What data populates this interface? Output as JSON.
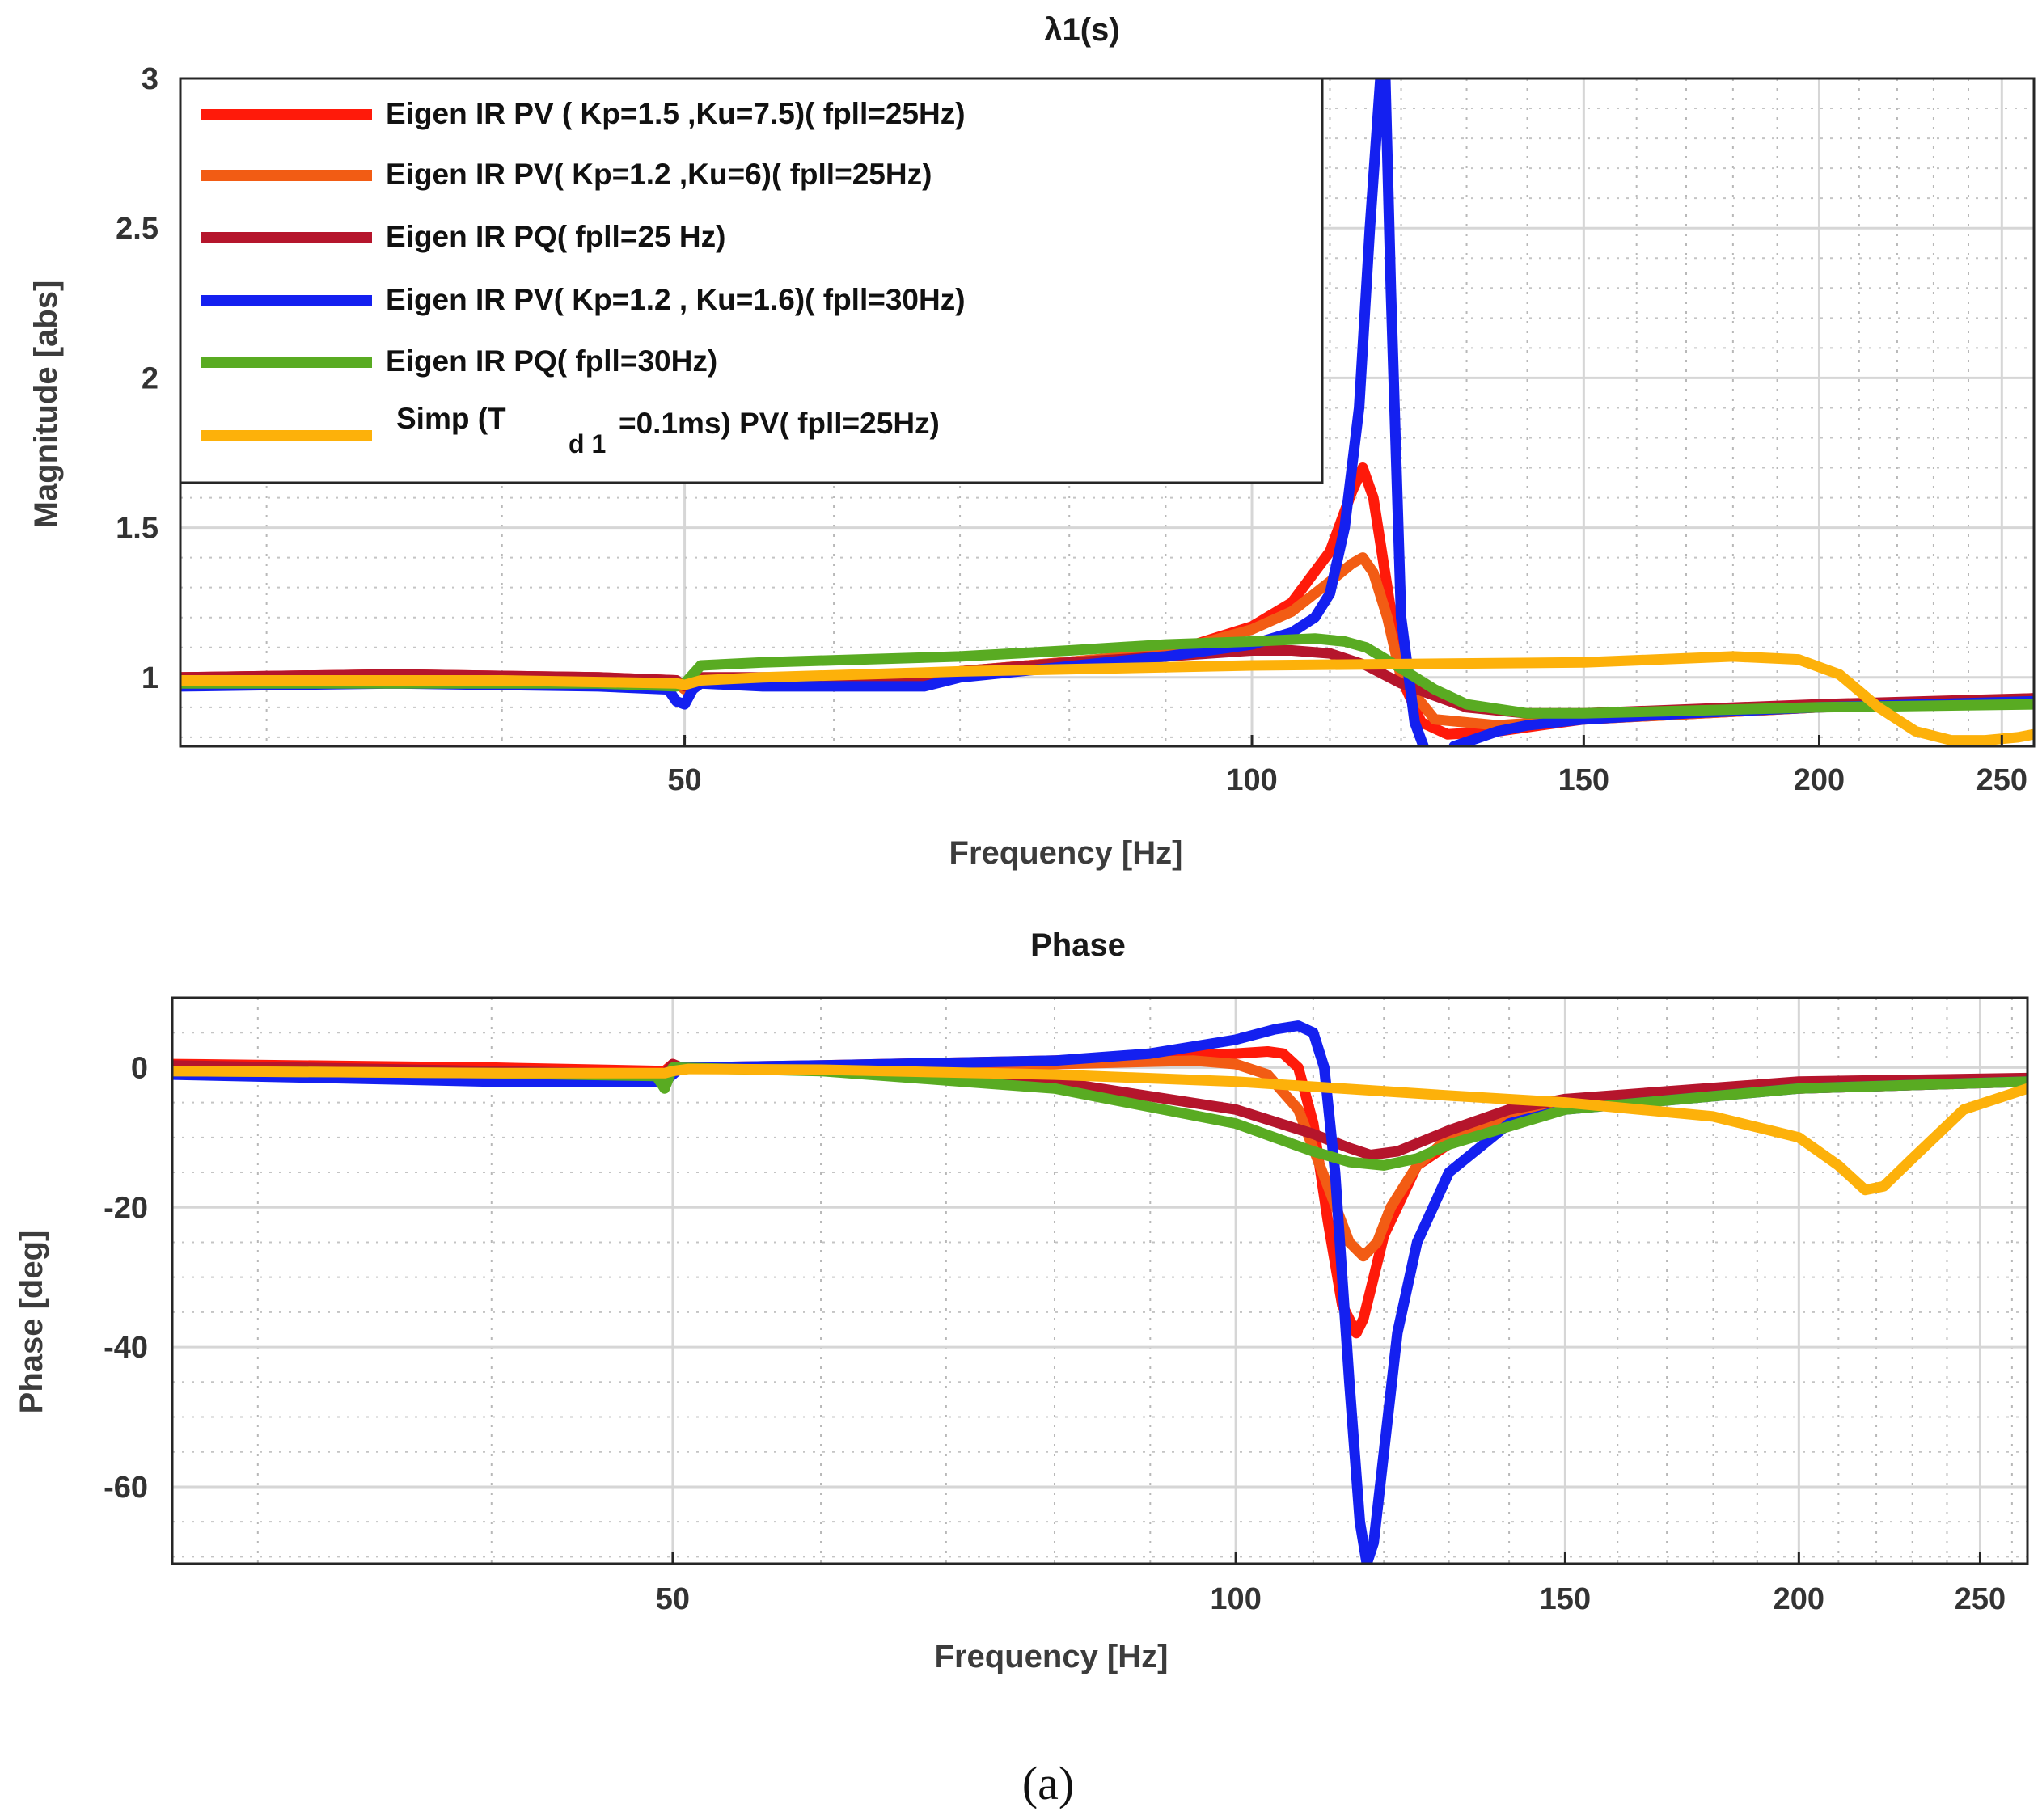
{
  "caption": "(a)",
  "colors": {
    "red": "#ff1a0a",
    "orange": "#f25c14",
    "darkred": "#b5152c",
    "blue": "#1420f0",
    "green": "#59ab22",
    "yellow": "#fdb10a",
    "grid": "#d6d6d6",
    "axis": "#262626"
  },
  "chart_data": [
    {
      "type": "line",
      "title": "λ1(s)",
      "xlabel": "Frequency [Hz]",
      "ylabel": "Magnitude [abs]",
      "xscale": "log",
      "xlim": [
        27,
        260
      ],
      "ylim": [
        0.77,
        3.0
      ],
      "xticks": [
        50,
        100,
        150,
        200,
        250
      ],
      "xtick_labels": [
        "50",
        "100",
        "150",
        "200",
        "250"
      ],
      "yticks": [
        1,
        1.5,
        2,
        2.5,
        3
      ],
      "ytick_labels": [
        "1",
        "1.5",
        "2",
        "2.5",
        "3"
      ],
      "legend_position": "top-left",
      "legend": [
        {
          "label": "Eigen IR PV ( Kp=1.5 ,Ku=7.5)( fpll=25Hz)",
          "color": "red"
        },
        {
          "label": "Eigen IR PV( Kp=1.2 ,Ku=6)( fpll=25Hz)",
          "color": "orange"
        },
        {
          "label": "Eigen IR PQ( fpll=25 Hz)",
          "color": "darkred"
        },
        {
          "label": "Eigen  IR  PV( Kp=1.2 , Ku=1.6)( fpll=30Hz)",
          "color": "blue"
        },
        {
          "label": "Eigen  IR  PQ( fpll=30Hz)",
          "color": "green"
        },
        {
          "label": "Simp (T",
          "sub": "d 1",
          "suffix": "=0.1ms) PV( fpll=25Hz)",
          "color": "yellow"
        }
      ],
      "series": [
        {
          "name": "Eigen IR PV ( Kp=1.5 ,Ku=7.5)( fpll=25Hz)",
          "color": "red",
          "x": [
            27,
            35,
            45,
            49.5,
            50,
            50.5,
            55,
            65,
            67.5,
            70,
            90,
            100,
            105,
            110,
            113,
            114.5,
            116,
            118,
            120,
            123,
            127,
            135,
            150,
            200,
            260
          ],
          "y": [
            1.0,
            1.01,
            1.0,
            0.99,
            0.96,
            0.98,
            0.98,
            0.985,
            0.98,
            1.02,
            1.08,
            1.17,
            1.25,
            1.42,
            1.62,
            1.7,
            1.6,
            1.3,
            1.0,
            0.85,
            0.81,
            0.82,
            0.86,
            0.9,
            0.93
          ]
        },
        {
          "name": "Eigen IR PV( Kp=1.2 ,Ku=6)( fpll=25Hz)",
          "color": "orange",
          "x": [
            27,
            35,
            45,
            49.5,
            50,
            50.5,
            55,
            67,
            70,
            90,
            100,
            105,
            110,
            113,
            114.5,
            116,
            118,
            120,
            125,
            135,
            150,
            200,
            260
          ],
          "y": [
            0.99,
            1.0,
            0.99,
            0.98,
            0.96,
            0.99,
            0.99,
            0.99,
            1.02,
            1.08,
            1.16,
            1.22,
            1.32,
            1.38,
            1.4,
            1.35,
            1.2,
            1.0,
            0.86,
            0.84,
            0.86,
            0.9,
            0.92
          ]
        },
        {
          "name": "Eigen IR PQ( fpll=25 Hz)",
          "color": "darkred",
          "x": [
            27,
            35,
            45,
            49.5,
            50,
            50.5,
            55,
            67,
            70,
            80,
            90,
            100,
            105,
            110,
            115,
            120,
            130,
            140,
            150,
            200,
            260
          ],
          "y": [
            1.0,
            1.01,
            1.0,
            0.99,
            0.97,
            1.0,
            1.0,
            1.0,
            1.02,
            1.05,
            1.07,
            1.09,
            1.09,
            1.08,
            1.04,
            0.98,
            0.9,
            0.88,
            0.88,
            0.91,
            0.93
          ]
        },
        {
          "name": "Eigen  IR  PV( Kp=1.2 , Ku=1.6)( fpll=30Hz)",
          "color": "blue",
          "x": [
            27,
            35,
            45,
            49,
            49.5,
            50,
            50.5,
            51,
            55,
            67,
            70,
            90,
            100,
            105,
            108,
            110,
            112,
            114,
            115.5,
            117,
            117.7,
            118.5,
            120,
            122,
            124.5
          ],
          "y": [
            0.97,
            0.98,
            0.97,
            0.96,
            0.92,
            0.91,
            0.96,
            0.98,
            0.97,
            0.97,
            1.0,
            1.07,
            1.11,
            1.15,
            1.2,
            1.28,
            1.5,
            1.9,
            2.5,
            3.0,
            3.0,
            2.3,
            1.2,
            0.85,
            0.7
          ]
        },
        {
          "name": "Eigen  IR  PV( Kp=1.2 , Ku=1.6)( fpll=30Hz)",
          "color": "blue",
          "x": [
            128,
            135,
            140,
            150,
            170,
            200,
            260
          ],
          "y": [
            0.77,
            0.82,
            0.84,
            0.86,
            0.88,
            0.9,
            0.92
          ]
        },
        {
          "name": "Eigen  IR  PQ( fpll=30Hz)",
          "color": "green",
          "x": [
            27,
            35,
            45,
            49.5,
            50,
            51,
            55,
            70,
            80,
            90,
            100,
            108,
            112,
            115,
            120,
            125,
            130,
            140,
            150,
            200,
            260
          ],
          "y": [
            0.98,
            0.98,
            0.98,
            0.97,
            0.98,
            1.04,
            1.05,
            1.07,
            1.09,
            1.11,
            1.12,
            1.13,
            1.12,
            1.1,
            1.03,
            0.96,
            0.91,
            0.88,
            0.88,
            0.9,
            0.91
          ]
        },
        {
          "name": "Simp (T d1 =0.1ms) PV( fpll=25Hz)",
          "color": "yellow",
          "x": [
            27,
            40,
            49.5,
            50,
            51,
            55,
            70,
            100,
            150,
            180,
            195,
            205,
            215,
            225,
            235,
            245,
            255,
            260
          ],
          "y": [
            0.99,
            0.99,
            0.98,
            0.975,
            0.99,
            1.0,
            1.02,
            1.04,
            1.05,
            1.07,
            1.06,
            1.01,
            0.9,
            0.82,
            0.79,
            0.79,
            0.8,
            0.81
          ]
        }
      ]
    },
    {
      "type": "line",
      "title": "Phase",
      "xlabel": "Frequency [Hz]",
      "ylabel": "Phase [deg]",
      "xscale": "log",
      "xlim": [
        27,
        265
      ],
      "ylim": [
        -71,
        10
      ],
      "xticks": [
        50,
        100,
        150,
        200,
        250
      ],
      "xtick_labels": [
        "50",
        "100",
        "150",
        "200",
        "250"
      ],
      "yticks": [
        -60,
        -40,
        -20,
        0
      ],
      "ytick_labels": [
        "-60",
        "-40",
        "-20",
        "0"
      ],
      "series": [
        {
          "name": "Eigen IR PV ( Kp=1.5 ,Ku=7.5)( fpll=25Hz)",
          "color": "red",
          "x": [
            27,
            40,
            49.5,
            50,
            50.5,
            60,
            80,
            100,
            104,
            106,
            108,
            110,
            112,
            114,
            116,
            117,
            118,
            120,
            125,
            135,
            150,
            200,
            265
          ],
          "y": [
            0.5,
            0,
            -0.5,
            0.5,
            0,
            0.3,
            1.0,
            2.0,
            2.3,
            2.0,
            0,
            -8,
            -22,
            -34,
            -38,
            -36,
            -32,
            -24,
            -14,
            -8,
            -5,
            -3,
            -2
          ]
        },
        {
          "name": "Eigen IR PV( Kp=1.2 ,Ku=6)( fpll=25Hz)",
          "color": "orange",
          "x": [
            27,
            40,
            49.5,
            50,
            50.5,
            60,
            80,
            95,
            100,
            104,
            108,
            112,
            115,
            117,
            119,
            121,
            125,
            130,
            140,
            150,
            200,
            265
          ],
          "y": [
            0,
            -0.5,
            -1,
            0.3,
            0,
            0.1,
            0.5,
            1.0,
            0.5,
            -1,
            -6,
            -17,
            -25,
            -27,
            -25,
            -20,
            -14,
            -10,
            -7,
            -5,
            -3,
            -2
          ]
        },
        {
          "name": "Eigen IR PQ( fpll=25 Hz)",
          "color": "darkred",
          "x": [
            27,
            40,
            49.5,
            50,
            50.5,
            60,
            80,
            100,
            110,
            115,
            118,
            122,
            130,
            140,
            150,
            200,
            265
          ],
          "y": [
            0.3,
            -0.5,
            -1,
            0.5,
            0,
            -0.3,
            -2,
            -6,
            -9.5,
            -11.5,
            -12.5,
            -12,
            -9,
            -6,
            -4.5,
            -2,
            -1.5
          ]
        },
        {
          "name": "Eigen  IR  PV( Kp=1.2 , Ku=1.6)( fpll=30Hz)",
          "color": "blue",
          "x": [
            27,
            40,
            49.5,
            50,
            50.5,
            60,
            80,
            90,
            100,
            105,
            108,
            110,
            111.5,
            113,
            115,
            116.5,
            117.5,
            118.5,
            120,
            122,
            125,
            130,
            140,
            150,
            200,
            265
          ],
          "y": [
            -1,
            -2,
            -2,
            -1,
            0,
            0.3,
            1.0,
            2.0,
            4.0,
            5.5,
            6.0,
            5.0,
            0,
            -15,
            -45,
            -65,
            -71,
            -68,
            -55,
            -38,
            -25,
            -15,
            -8,
            -6,
            -3,
            -2
          ]
        },
        {
          "name": "Eigen  IR  PQ( fpll=30Hz)",
          "color": "green",
          "x": [
            27,
            40,
            49,
            49.5,
            50,
            60,
            80,
            100,
            110,
            115,
            120,
            125,
            130,
            150,
            200,
            265
          ],
          "y": [
            -0.5,
            -0.8,
            -1.2,
            -3,
            0,
            -0.5,
            -3,
            -8,
            -12,
            -13.5,
            -14,
            -13,
            -11,
            -6,
            -3,
            -2
          ]
        },
        {
          "name": "Simp (T d1 =0.1ms) PV( fpll=25Hz)",
          "color": "yellow",
          "x": [
            27,
            40,
            49.5,
            50,
            51,
            60,
            80,
            100,
            130,
            150,
            180,
            200,
            210,
            217,
            222,
            230,
            245,
            265
          ],
          "y": [
            -0.5,
            -0.8,
            -0.8,
            -0.5,
            -0.2,
            -0.3,
            -1.0,
            -2.0,
            -4.0,
            -5.0,
            -7.0,
            -10.0,
            -14.0,
            -17.5,
            -17.0,
            -13.0,
            -6.0,
            -3.0
          ]
        }
      ]
    }
  ]
}
